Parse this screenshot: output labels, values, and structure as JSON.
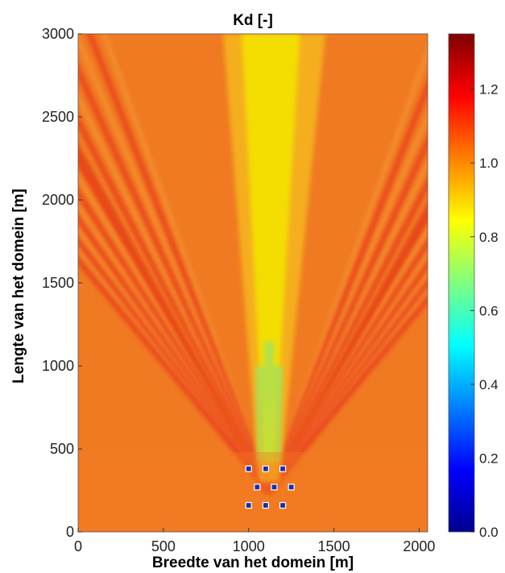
{
  "chart_data": {
    "type": "heatmap",
    "title": "Kd [-]",
    "xlabel": "Breedte van het domein [m]",
    "ylabel": "Lengte van het domein [m]",
    "xlim": [
      0,
      2050
    ],
    "ylim": [
      0,
      3000
    ],
    "x_ticks": [
      "0",
      "500",
      "1000",
      "1500",
      "2000"
    ],
    "y_ticks": [
      "0",
      "500",
      "1000",
      "1500",
      "2000",
      "2500",
      "3000"
    ],
    "colorbar": {
      "range": [
        0.0,
        1.35
      ],
      "ticks": [
        "0.0",
        "0.2",
        "0.4",
        "0.6",
        "0.8",
        "1.0",
        "1.2"
      ],
      "colormap": "jet"
    },
    "field_description": "Wave diffraction coefficient field behind an array of obstacles",
    "obstacles": [
      {
        "x": 1000,
        "y": 380
      },
      {
        "x": 1100,
        "y": 380
      },
      {
        "x": 1200,
        "y": 380
      },
      {
        "x": 1050,
        "y": 270
      },
      {
        "x": 1150,
        "y": 270
      },
      {
        "x": 1250,
        "y": 270
      },
      {
        "x": 1000,
        "y": 160
      },
      {
        "x": 1100,
        "y": 160
      },
      {
        "x": 1200,
        "y": 160
      }
    ],
    "colors": {
      "background_field": "#f07820",
      "shadow_core": "#f2e200",
      "obstacle_fill": "#1a2ea8",
      "obstacle_edge": "#ffffff"
    }
  }
}
